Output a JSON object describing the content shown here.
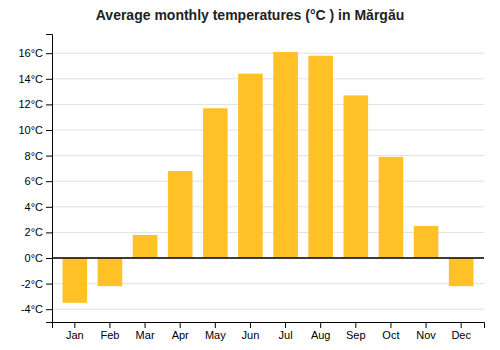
{
  "chart_data": {
    "type": "bar",
    "title": "Average monthly temperatures (°C ) in Mărgău",
    "categories": [
      "Jan",
      "Feb",
      "Mar",
      "Apr",
      "May",
      "Jun",
      "Jul",
      "Aug",
      "Sep",
      "Oct",
      "Nov",
      "Dec"
    ],
    "values": [
      -3.5,
      -2.2,
      1.8,
      6.8,
      11.7,
      14.4,
      16.1,
      15.8,
      12.7,
      7.9,
      2.5,
      -2.2
    ],
    "color": "#FFC125",
    "ylim": [
      -5,
      17.5
    ],
    "yticks": [
      {
        "value": -4,
        "label": "-4°C"
      },
      {
        "value": -2,
        "label": "-2°C"
      },
      {
        "value": 0,
        "label": "0°C"
      },
      {
        "value": 2,
        "label": "2°C"
      },
      {
        "value": 4,
        "label": "4°C"
      },
      {
        "value": 6,
        "label": "6°C"
      },
      {
        "value": 8,
        "label": "8°C"
      },
      {
        "value": 10,
        "label": "10°C"
      },
      {
        "value": 12,
        "label": "12°C"
      },
      {
        "value": 14,
        "label": "14°C"
      },
      {
        "value": 16,
        "label": "16°C"
      }
    ],
    "grid": true
  }
}
